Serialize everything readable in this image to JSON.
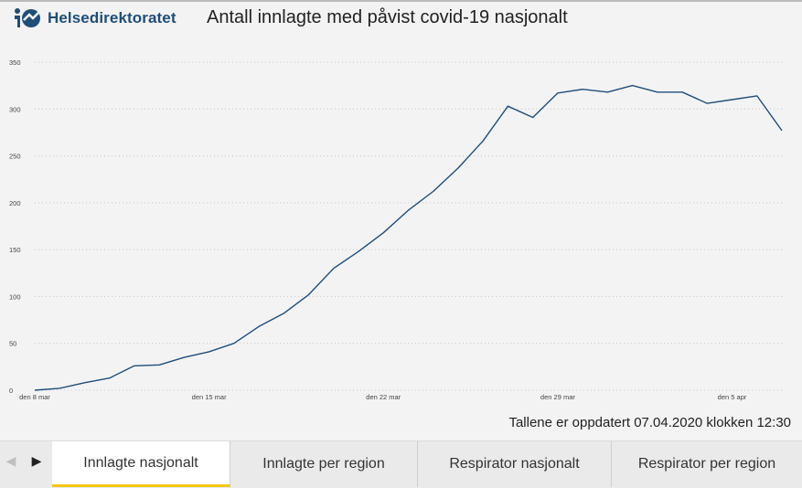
{
  "header": {
    "logo_text": "Helsedirektoratet",
    "title": "Antall innlagte med påvist covid-19 nasjonalt"
  },
  "footer": {
    "updated_text": "Tallene er oppdatert 07.04.2020 klokken 12:30"
  },
  "tabs": [
    {
      "label": "Innlagte nasjonalt",
      "active": true
    },
    {
      "label": "Innlagte per region",
      "active": false
    },
    {
      "label": "Respirator nasjonalt",
      "active": false
    },
    {
      "label": "Respirator per region",
      "active": false
    }
  ],
  "nav": {
    "prev_icon": "chevron-left-icon",
    "next_icon": "chevron-right-icon"
  },
  "colors": {
    "line": "#1f4e79",
    "accent": "#f2c811",
    "logo": "#1f4e79"
  },
  "chart_data": {
    "type": "line",
    "title": "Antall innlagte med påvist covid-19 nasjonalt",
    "xlabel": "",
    "ylabel": "",
    "ylim": [
      0,
      350
    ],
    "yticks": [
      0,
      50,
      100,
      150,
      200,
      250,
      300,
      350
    ],
    "xticks": [
      {
        "day": 0,
        "label": "den 8 mar"
      },
      {
        "day": 7,
        "label": "den 15 mar"
      },
      {
        "day": 14,
        "label": "den 22 mar"
      },
      {
        "day": 21,
        "label": "den 29 mar"
      },
      {
        "day": 28,
        "label": "den 5 apr"
      }
    ],
    "grid": true,
    "x": [
      "2020-03-08",
      "2020-03-09",
      "2020-03-10",
      "2020-03-11",
      "2020-03-12",
      "2020-03-13",
      "2020-03-14",
      "2020-03-15",
      "2020-03-16",
      "2020-03-17",
      "2020-03-18",
      "2020-03-19",
      "2020-03-20",
      "2020-03-21",
      "2020-03-22",
      "2020-03-23",
      "2020-03-24",
      "2020-03-25",
      "2020-03-26",
      "2020-03-27",
      "2020-03-28",
      "2020-03-29",
      "2020-03-30",
      "2020-03-31",
      "2020-04-01",
      "2020-04-02",
      "2020-04-03",
      "2020-04-04",
      "2020-04-05",
      "2020-04-06",
      "2020-04-07"
    ],
    "series": [
      {
        "values": [
          0,
          2,
          8,
          13,
          26,
          27,
          35,
          41,
          50,
          68,
          82,
          102,
          130,
          148,
          168,
          192,
          212,
          237,
          266,
          303,
          291,
          317,
          321,
          318,
          325,
          318,
          318,
          306,
          310,
          314,
          277
        ]
      }
    ]
  }
}
